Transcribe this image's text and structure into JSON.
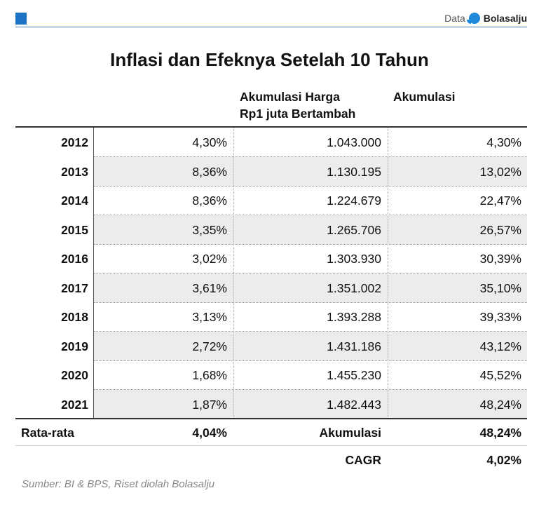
{
  "header": {
    "brand_prefix": "Data",
    "brand_name": "Bolasalju"
  },
  "chart_data": {
    "type": "table",
    "title": "Inflasi dan Efeknya Setelah 10 Tahun",
    "columns": [
      "",
      "",
      "Akumulasi Harga Rp1 juta Bertambah",
      "Akumulasi"
    ],
    "column_header_lines": {
      "col2_line1": "Akumulasi Harga",
      "col2_line2": "Rp1 juta Bertambah",
      "col3": "Akumulasi"
    },
    "rows": [
      {
        "year": "2012",
        "inflasi": "4,30%",
        "harga": "1.043.000",
        "akumulasi": "4,30%"
      },
      {
        "year": "2013",
        "inflasi": "8,36%",
        "harga": "1.130.195",
        "akumulasi": "13,02%"
      },
      {
        "year": "2014",
        "inflasi": "8,36%",
        "harga": "1.224.679",
        "akumulasi": "22,47%"
      },
      {
        "year": "2015",
        "inflasi": "3,35%",
        "harga": "1.265.706",
        "akumulasi": "26,57%"
      },
      {
        "year": "2016",
        "inflasi": "3,02%",
        "harga": "1.303.930",
        "akumulasi": "30,39%"
      },
      {
        "year": "2017",
        "inflasi": "3,61%",
        "harga": "1.351.002",
        "akumulasi": "35,10%"
      },
      {
        "year": "2018",
        "inflasi": "3,13%",
        "harga": "1.393.288",
        "akumulasi": "39,33%"
      },
      {
        "year": "2019",
        "inflasi": "2,72%",
        "harga": "1.431.186",
        "akumulasi": "43,12%"
      },
      {
        "year": "2020",
        "inflasi": "1,68%",
        "harga": "1.455.230",
        "akumulasi": "45,52%"
      },
      {
        "year": "2021",
        "inflasi": "1,87%",
        "harga": "1.482.443",
        "akumulasi": "48,24%"
      }
    ],
    "summary": {
      "avg_label": "Rata-rata",
      "avg_value": "4,04%",
      "accum_label": "Akumulasi",
      "accum_value": "48,24%",
      "cagr_label": "CAGR",
      "cagr_value": "4,02%"
    },
    "source": "Sumber: BI & BPS, Riset diolah Bolasalju",
    "colors": {
      "accent": "#1f73c4",
      "shade": "#ececec"
    }
  }
}
